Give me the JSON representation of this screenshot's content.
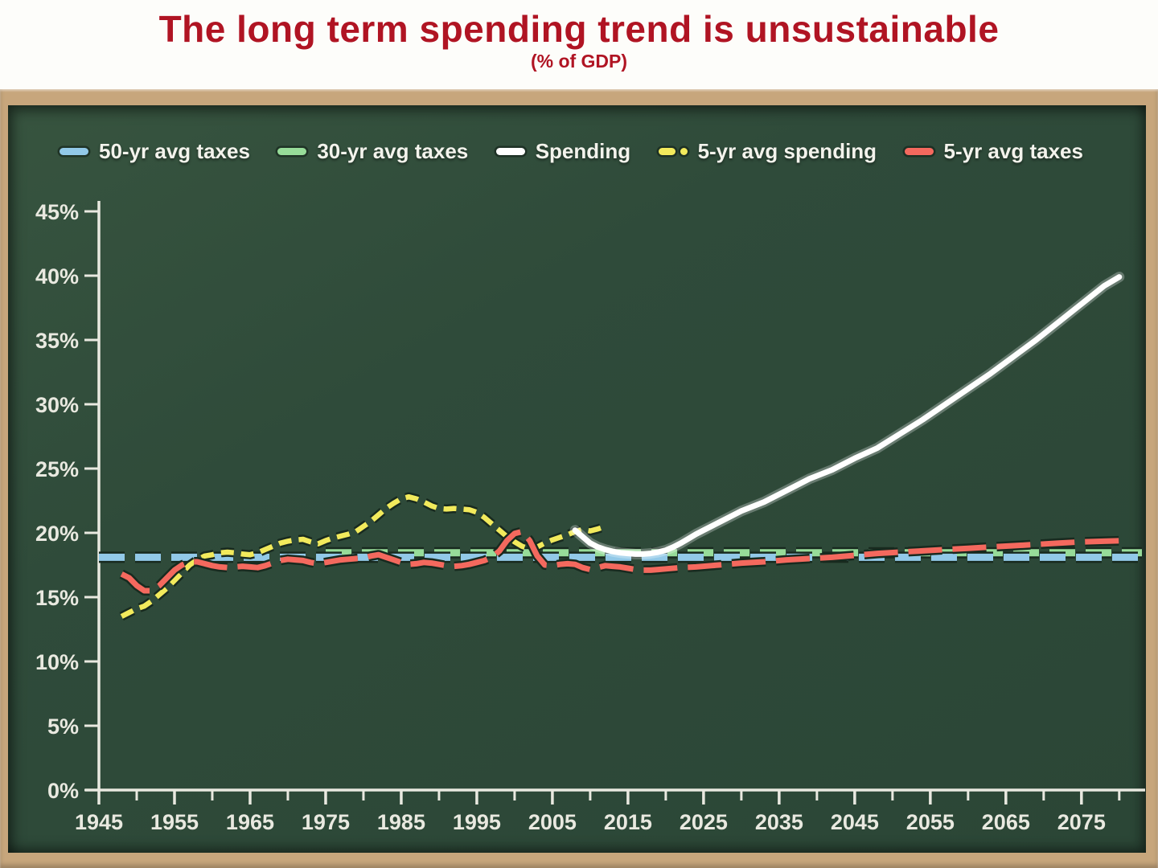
{
  "page": {
    "title": "The long term spending trend is unsustainable",
    "subtitle": "(% of GDP)"
  },
  "colors": {
    "title_red": "#b01423",
    "chalkboard_green": "#2f4b3a",
    "frame_tan": "#c7a67c",
    "axis_text": "#e9e9e0",
    "line_outline_dark": "#182a1f"
  },
  "chart_data": {
    "type": "line",
    "title": "The long term spending trend is unsustainable",
    "subtitle": "(% of GDP)",
    "grid": false,
    "legend_position": "top",
    "x_axis": {
      "min": 1945,
      "max": 2083,
      "label_years": [
        1945,
        1955,
        1965,
        1975,
        1985,
        1995,
        2005,
        2015,
        2025,
        2035,
        2045,
        2055,
        2065,
        2075
      ],
      "tick_labels": [
        "1945",
        "1955",
        "1965",
        "1975",
        "1985",
        "1995",
        "2005",
        "2015",
        "2025",
        "2035",
        "2045",
        "2055",
        "2065",
        "2075"
      ],
      "minor_tick_years": [
        1950,
        1960,
        1970,
        1980,
        1990,
        2000,
        2010,
        2020,
        2030,
        2040,
        2050,
        2060,
        2070,
        2080
      ]
    },
    "y_axis": {
      "min": 0,
      "max": 45,
      "tick_values": [
        0,
        5,
        10,
        15,
        20,
        25,
        30,
        35,
        40,
        45
      ],
      "tick_labels": [
        "0%",
        "5%",
        "10%",
        "15%",
        "20%",
        "25%",
        "30%",
        "35%",
        "40%",
        "45%"
      ]
    },
    "series": [
      {
        "name": "50-yr avg taxes",
        "color": "#92c9e8",
        "style": "dashed-long",
        "width": 9,
        "points": [
          [
            1945,
            18.1
          ],
          [
            2083,
            18.1
          ]
        ]
      },
      {
        "name": "30-yr avg taxes",
        "color": "#97dc99",
        "style": "dashed-long",
        "width": 9,
        "points": [
          [
            1975,
            18.45
          ],
          [
            2083,
            18.45
          ]
        ]
      },
      {
        "name": "Spending",
        "color": "#ffffff",
        "style": "solid",
        "width": 7,
        "points": [
          [
            2008,
            20.2
          ],
          [
            2009,
            19.7
          ],
          [
            2010,
            19.2
          ],
          [
            2011,
            18.9
          ],
          [
            2012,
            18.7
          ],
          [
            2013,
            18.55
          ],
          [
            2014,
            18.45
          ],
          [
            2015,
            18.4
          ],
          [
            2016,
            18.35
          ],
          [
            2017,
            18.35
          ],
          [
            2018,
            18.4
          ],
          [
            2019,
            18.5
          ],
          [
            2020,
            18.65
          ],
          [
            2021,
            18.9
          ],
          [
            2022,
            19.2
          ],
          [
            2023,
            19.55
          ],
          [
            2024,
            19.9
          ],
          [
            2025,
            20.2
          ],
          [
            2026,
            20.5
          ],
          [
            2028,
            21.1
          ],
          [
            2030,
            21.7
          ],
          [
            2033,
            22.4
          ],
          [
            2036,
            23.3
          ],
          [
            2039,
            24.2
          ],
          [
            2042,
            24.9
          ],
          [
            2045,
            25.8
          ],
          [
            2048,
            26.6
          ],
          [
            2051,
            27.7
          ],
          [
            2054,
            28.8
          ],
          [
            2057,
            30.0
          ],
          [
            2060,
            31.2
          ],
          [
            2063,
            32.4
          ],
          [
            2066,
            33.7
          ],
          [
            2069,
            35.0
          ],
          [
            2072,
            36.4
          ],
          [
            2075,
            37.8
          ],
          [
            2078,
            39.2
          ],
          [
            2080,
            39.9
          ]
        ]
      },
      {
        "name": "5-yr avg spending",
        "color": "#f2ea5c",
        "style": "dashed-short",
        "width": 6.5,
        "points": [
          [
            1948,
            13.5
          ],
          [
            1949,
            13.8
          ],
          [
            1950,
            14.1
          ],
          [
            1951,
            14.3
          ],
          [
            1952,
            14.7
          ],
          [
            1953,
            15.2
          ],
          [
            1954,
            15.7
          ],
          [
            1955,
            16.3
          ],
          [
            1956,
            16.9
          ],
          [
            1957,
            17.5
          ],
          [
            1958,
            17.9
          ],
          [
            1959,
            18.2
          ],
          [
            1960,
            18.3
          ],
          [
            1961,
            18.45
          ],
          [
            1962,
            18.5
          ],
          [
            1963,
            18.45
          ],
          [
            1964,
            18.35
          ],
          [
            1965,
            18.3
          ],
          [
            1966,
            18.45
          ],
          [
            1967,
            18.7
          ],
          [
            1968,
            18.95
          ],
          [
            1969,
            19.2
          ],
          [
            1970,
            19.35
          ],
          [
            1971,
            19.45
          ],
          [
            1972,
            19.5
          ],
          [
            1973,
            19.3
          ],
          [
            1974,
            19.15
          ],
          [
            1975,
            19.4
          ],
          [
            1976,
            19.6
          ],
          [
            1977,
            19.75
          ],
          [
            1978,
            19.9
          ],
          [
            1979,
            20.1
          ],
          [
            1980,
            20.5
          ],
          [
            1981,
            20.9
          ],
          [
            1982,
            21.4
          ],
          [
            1983,
            21.9
          ],
          [
            1984,
            22.3
          ],
          [
            1985,
            22.65
          ],
          [
            1986,
            22.8
          ],
          [
            1987,
            22.65
          ],
          [
            1988,
            22.4
          ],
          [
            1989,
            22.1
          ],
          [
            1990,
            21.9
          ],
          [
            1991,
            21.85
          ],
          [
            1992,
            21.9
          ],
          [
            1993,
            21.85
          ],
          [
            1994,
            21.8
          ],
          [
            1995,
            21.6
          ],
          [
            1996,
            21.2
          ],
          [
            1997,
            20.7
          ],
          [
            1998,
            20.2
          ],
          [
            1999,
            19.7
          ],
          [
            2000,
            19.3
          ],
          [
            2001,
            18.95
          ],
          [
            2002,
            18.75
          ],
          [
            2003,
            18.9
          ],
          [
            2004,
            19.2
          ],
          [
            2005,
            19.45
          ],
          [
            2006,
            19.65
          ],
          [
            2007,
            19.85
          ],
          [
            2008,
            20.1
          ],
          [
            2009,
            20.25
          ],
          [
            2010,
            20.15
          ],
          [
            2011,
            20.3
          ],
          [
            2012,
            20.5
          ]
        ]
      },
      {
        "name": "5-yr avg taxes",
        "color": "#f4695e",
        "style": "dashed-med",
        "width": 7,
        "points": [
          [
            1948,
            16.8
          ],
          [
            1949,
            16.5
          ],
          [
            1950,
            15.9
          ],
          [
            1951,
            15.5
          ],
          [
            1952,
            15.5
          ],
          [
            1953,
            15.9
          ],
          [
            1954,
            16.5
          ],
          [
            1955,
            17.1
          ],
          [
            1956,
            17.5
          ],
          [
            1957,
            17.75
          ],
          [
            1958,
            17.75
          ],
          [
            1959,
            17.6
          ],
          [
            1960,
            17.45
          ],
          [
            1961,
            17.35
          ],
          [
            1962,
            17.3
          ],
          [
            1963,
            17.35
          ],
          [
            1964,
            17.4
          ],
          [
            1965,
            17.35
          ],
          [
            1966,
            17.3
          ],
          [
            1967,
            17.45
          ],
          [
            1968,
            17.65
          ],
          [
            1969,
            17.85
          ],
          [
            1970,
            17.95
          ],
          [
            1971,
            17.9
          ],
          [
            1972,
            17.85
          ],
          [
            1973,
            17.7
          ],
          [
            1974,
            17.6
          ],
          [
            1975,
            17.7
          ],
          [
            1976,
            17.8
          ],
          [
            1977,
            17.9
          ],
          [
            1978,
            17.95
          ],
          [
            1979,
            18.0
          ],
          [
            1980,
            18.05
          ],
          [
            1981,
            18.2
          ],
          [
            1982,
            18.3
          ],
          [
            1983,
            18.1
          ],
          [
            1984,
            17.9
          ],
          [
            1985,
            17.7
          ],
          [
            1986,
            17.55
          ],
          [
            1987,
            17.6
          ],
          [
            1988,
            17.7
          ],
          [
            1989,
            17.65
          ],
          [
            1990,
            17.55
          ],
          [
            1991,
            17.45
          ],
          [
            1992,
            17.4
          ],
          [
            1993,
            17.45
          ],
          [
            1994,
            17.55
          ],
          [
            1995,
            17.7
          ],
          [
            1996,
            17.85
          ],
          [
            1997,
            18.1
          ],
          [
            1998,
            18.6
          ],
          [
            1999,
            19.4
          ],
          [
            2000,
            19.95
          ],
          [
            2001,
            20.1
          ],
          [
            2002,
            19.4
          ],
          [
            2003,
            18.2
          ],
          [
            2004,
            17.5
          ],
          [
            2005,
            17.45
          ],
          [
            2006,
            17.55
          ],
          [
            2007,
            17.6
          ],
          [
            2008,
            17.55
          ],
          [
            2009,
            17.3
          ],
          [
            2010,
            17.15
          ],
          [
            2011,
            17.3
          ],
          [
            2012,
            17.45
          ],
          [
            2013,
            17.4
          ],
          [
            2014,
            17.35
          ],
          [
            2015,
            17.25
          ],
          [
            2016,
            17.15
          ],
          [
            2017,
            17.1
          ],
          [
            2018,
            17.1
          ],
          [
            2019,
            17.15
          ],
          [
            2020,
            17.2
          ],
          [
            2022,
            17.3
          ],
          [
            2024,
            17.35
          ],
          [
            2026,
            17.45
          ],
          [
            2028,
            17.55
          ],
          [
            2030,
            17.65
          ],
          [
            2033,
            17.75
          ],
          [
            2036,
            17.9
          ],
          [
            2039,
            18.0
          ],
          [
            2042,
            18.1
          ],
          [
            2045,
            18.25
          ],
          [
            2048,
            18.4
          ],
          [
            2051,
            18.5
          ],
          [
            2054,
            18.6
          ],
          [
            2057,
            18.7
          ],
          [
            2060,
            18.8
          ],
          [
            2063,
            18.9
          ],
          [
            2066,
            19.0
          ],
          [
            2069,
            19.1
          ],
          [
            2072,
            19.2
          ],
          [
            2075,
            19.3
          ],
          [
            2078,
            19.35
          ],
          [
            2081,
            19.4
          ]
        ]
      }
    ]
  }
}
